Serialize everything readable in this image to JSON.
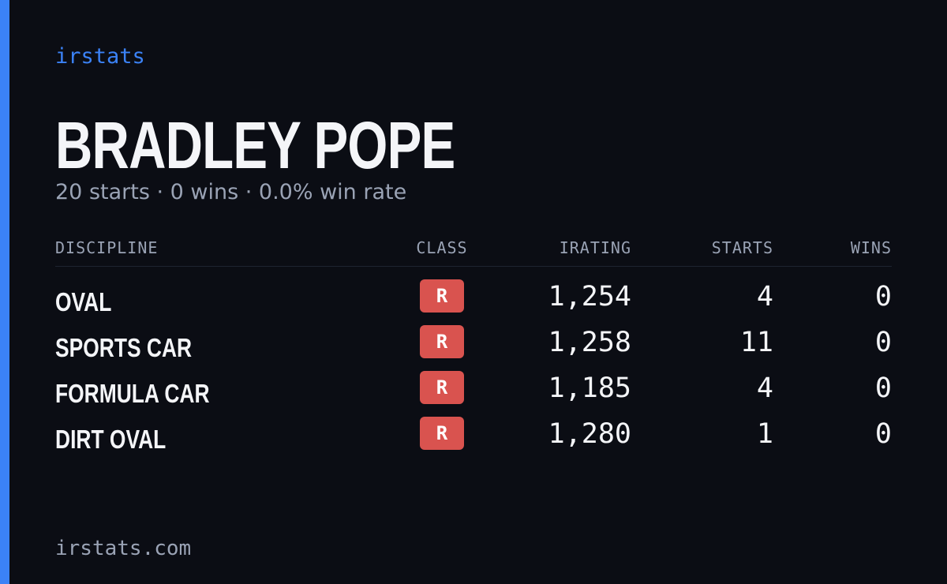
{
  "brand": "irstats",
  "profile": {
    "name": "BRADLEY POPE",
    "summary": "20 starts · 0 wins · 0.0% win rate"
  },
  "table": {
    "headers": [
      "DISCIPLINE",
      "CLASS",
      "IRATING",
      "STARTS",
      "WINS"
    ],
    "rows": [
      [
        "OVAL",
        "R",
        "1,254",
        "4",
        "0"
      ],
      [
        "SPORTS CAR",
        "R",
        "1,258",
        "11",
        "0"
      ],
      [
        "FORMULA CAR",
        "R",
        "1,185",
        "4",
        "0"
      ],
      [
        "DIRT OVAL",
        "R",
        "1,280",
        "1",
        "0"
      ]
    ]
  },
  "footer": "irstats.com"
}
